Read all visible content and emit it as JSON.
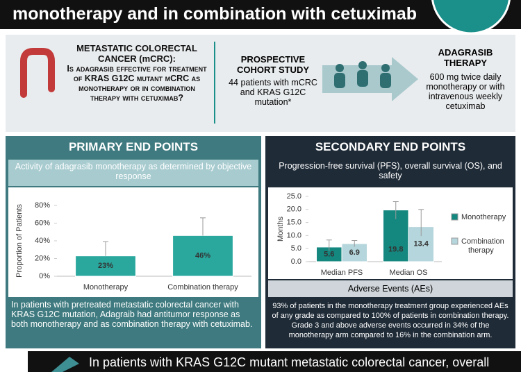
{
  "header": {
    "title": "monotherapy and in combination with cetuximab"
  },
  "question": {
    "heading": "METASTATIC COLORECTAL CANCER (mCRC):",
    "body": "Is adagrasib effective for treatment of KRAS G12C mutant mCRC as monotherapy or in combination therapy with cetuximab?"
  },
  "study": {
    "title": "PROSPECTIVE COHORT STUDY",
    "text": "44 patients with mCRC and KRAS G12C mutation*"
  },
  "therapy": {
    "title": "ADAGRASIB THERAPY",
    "text": "600 mg twice daily monotherapy or with intravenous weekly cetuximab"
  },
  "primary": {
    "title": "PRIMARY END POINTS",
    "subtitle": "Activity of adagrasib monotherapy as determined by objective response",
    "summary": "In patients with pretreated metastatic colorectal cancer with KRAS G12C mutation, Adagraib had antitumor response as both monotherapy and as combination therapy with cetuximab."
  },
  "secondary": {
    "title": "SECONDARY END POINTS",
    "subtitle": "Progression-free survival (PFS), overall survival (OS), and safety",
    "ae_title": "Adverse Events (AEs)",
    "summary": "93% of patients in the monotherapy treatment group experienced AEs of any grade as compared to 100% of patients in combination therapy. Grade 3 and above adverse events occurred in 34% of the monotherapy arm compared to 16% in the combination arm."
  },
  "footer": {
    "text": "In patients with KRAS G12C mutant metastatic colorectal cancer, overall"
  },
  "chart_data": [
    {
      "type": "bar",
      "y_label": "Proportion of Patients",
      "categories": [
        "Monotherapy",
        "Combination therapy"
      ],
      "values": [
        23,
        46
      ],
      "value_labels": [
        "23%",
        "46%"
      ],
      "error_high": [
        39,
        66
      ],
      "color": "#2aa89e",
      "ylim": [
        0,
        80
      ],
      "yticks": [
        {
          "value": 0,
          "label": "0%"
        },
        {
          "value": 20,
          "label": "20%"
        },
        {
          "value": 40,
          "label": "40%"
        },
        {
          "value": 60,
          "label": "60%"
        },
        {
          "value": 80,
          "label": "80%"
        }
      ]
    },
    {
      "type": "bar",
      "y_label": "Months",
      "categories": [
        "Median PFS",
        "Median OS"
      ],
      "legend": "right",
      "series": [
        {
          "name": "Monotherapy",
          "color": "#14877f",
          "values": [
            5.6,
            19.8
          ],
          "error_low": [
            4.1,
            16.3
          ],
          "error_high": [
            8.3,
            23.0
          ]
        },
        {
          "name": "Combination therapy",
          "color": "#b5d6dc",
          "values": [
            6.9,
            13.4
          ],
          "error_low": [
            5.7,
            9.8
          ],
          "error_high": [
            8.1,
            20.0
          ]
        }
      ],
      "ylim": [
        0,
        25
      ],
      "yticks": [
        {
          "value": 0,
          "label": "0.0"
        },
        {
          "value": 5,
          "label": "5.0"
        },
        {
          "value": 10,
          "label": "10.0"
        },
        {
          "value": 15,
          "label": "15.0"
        },
        {
          "value": 20,
          "label": "20.0"
        },
        {
          "value": 25,
          "label": "25.0"
        }
      ]
    }
  ]
}
